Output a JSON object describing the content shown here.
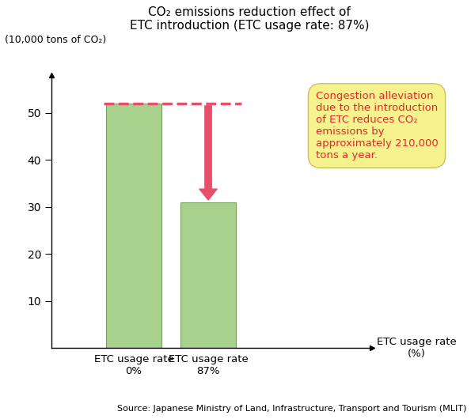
{
  "chart_data": {
    "type": "bar",
    "title": "CO₂ emissions reduction effect of\nETC introduction (ETC usage rate: 87%)",
    "y_label": "(10,000 tons of CO₂)",
    "x_label": "ETC usage rate\n(%)",
    "categories": [
      "ETC usage rate\n0%",
      "ETC usage rate\n87%"
    ],
    "values": [
      52,
      31
    ],
    "color": "#a9d18e",
    "ylim": [
      0,
      58
    ],
    "yticks": [
      10,
      20,
      30,
      40,
      50
    ],
    "annotation": "Congestion alleviation\ndue to the introduction\nof ETC reduces CO₂\nemissions by\napproximately 210,000\ntons a year.",
    "source": "Source: Japanese Ministry of Land, Infrastructure, Transport and Tourism (MLIT)"
  }
}
